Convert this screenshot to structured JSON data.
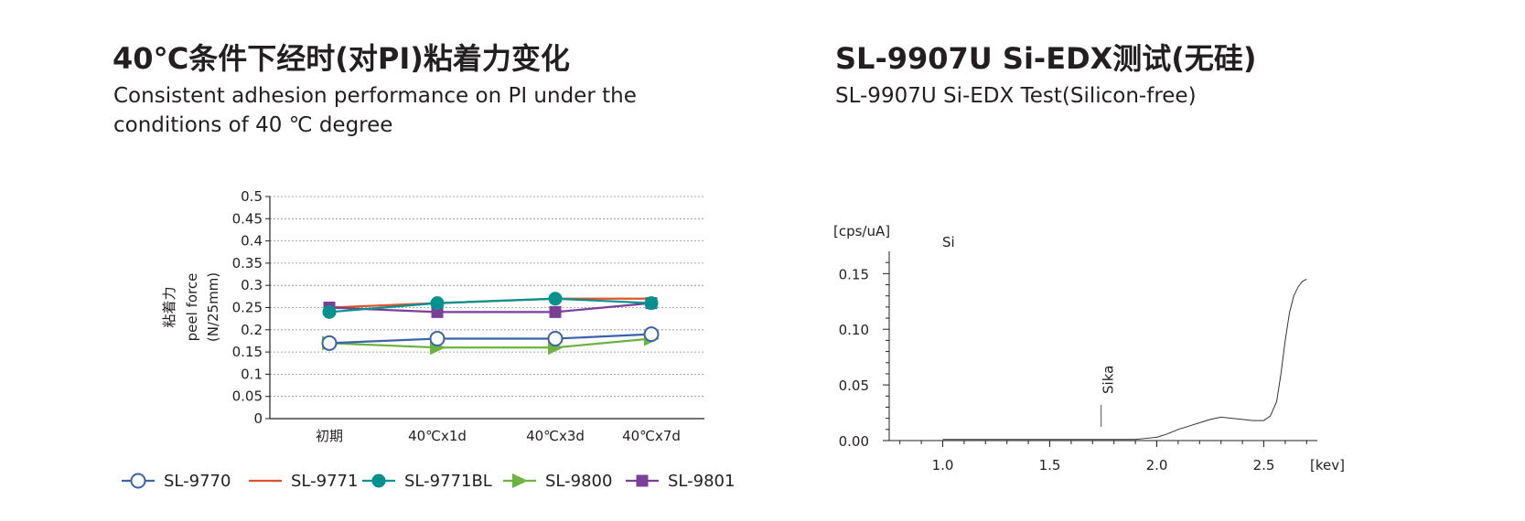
{
  "left": {
    "title": "40℃条件下经时(对PI)粘着力变化",
    "subtitle_line1": "Consistent adhesion  performance on PI under the",
    "subtitle_line2": "conditions of 40 ℃ degree"
  },
  "right": {
    "title": "SL-9907U Si-EDX测试(无硅)",
    "subtitle": "SL-9907U Si-EDX Test(Silicon-free)"
  },
  "chart_data": [
    {
      "type": "line",
      "categories": [
        "初期",
        "40℃x1d",
        "40℃x3d",
        "40℃x7d"
      ],
      "ylabel_cn": "粘着力",
      "ylabel_line1": "peel force",
      "ylabel_line2": "(N/25mm)",
      "ylim": [
        0,
        0.5
      ],
      "yticks": [
        "0",
        "0.05",
        "0.1",
        "0.15",
        "0.2",
        "0.25",
        "0.3",
        "0.35",
        "0.4",
        "0.45",
        "0.5"
      ],
      "grid": true,
      "legend_position": "bottom",
      "series": [
        {
          "name": "SL-9770",
          "values": [
            0.17,
            0.18,
            0.18,
            0.19
          ],
          "color": "#3a63a8",
          "marker": "open-circle"
        },
        {
          "name": "SL-9771",
          "values": [
            0.25,
            0.26,
            0.27,
            0.27
          ],
          "color": "#e0532a",
          "marker": "none"
        },
        {
          "name": "SL-9771BL",
          "values": [
            0.24,
            0.26,
            0.27,
            0.26
          ],
          "color": "#00928f",
          "marker": "filled-circle"
        },
        {
          "name": "SL-9800",
          "values": [
            0.17,
            0.16,
            0.16,
            0.18
          ],
          "color": "#6cb33f",
          "marker": "triangle-right"
        },
        {
          "name": "SL-9801",
          "values": [
            0.25,
            0.24,
            0.24,
            0.26
          ],
          "color": "#7b3f98",
          "marker": "square"
        }
      ]
    },
    {
      "type": "line",
      "ylabel": "[cps/uA]",
      "xlabel": "[kev]",
      "xlim": [
        0.75,
        2.75
      ],
      "ylim": [
        0,
        0.17
      ],
      "xticks": [
        "1.0",
        "1.5",
        "2.0",
        "2.5"
      ],
      "yticks": [
        "0.00",
        "0.05",
        "0.10",
        "0.15"
      ],
      "annotations": {
        "element": "Si",
        "marker_label": "Sika",
        "marker_x": 1.74
      },
      "series": [
        {
          "x": [
            1.0,
            1.1,
            1.2,
            1.3,
            1.4,
            1.5,
            1.6,
            1.7,
            1.8,
            1.9,
            1.95,
            2.0,
            2.05,
            2.1,
            2.15,
            2.2,
            2.25,
            2.3,
            2.35,
            2.4,
            2.45,
            2.5,
            2.53,
            2.56,
            2.58,
            2.6,
            2.62,
            2.64,
            2.66,
            2.68,
            2.7
          ],
          "y": [
            0.001,
            0.001,
            0.001,
            0.001,
            0.001,
            0.001,
            0.001,
            0.001,
            0.001,
            0.001,
            0.002,
            0.003,
            0.006,
            0.01,
            0.013,
            0.016,
            0.019,
            0.021,
            0.02,
            0.019,
            0.018,
            0.018,
            0.022,
            0.035,
            0.06,
            0.09,
            0.115,
            0.13,
            0.138,
            0.143,
            0.145
          ]
        }
      ]
    }
  ]
}
